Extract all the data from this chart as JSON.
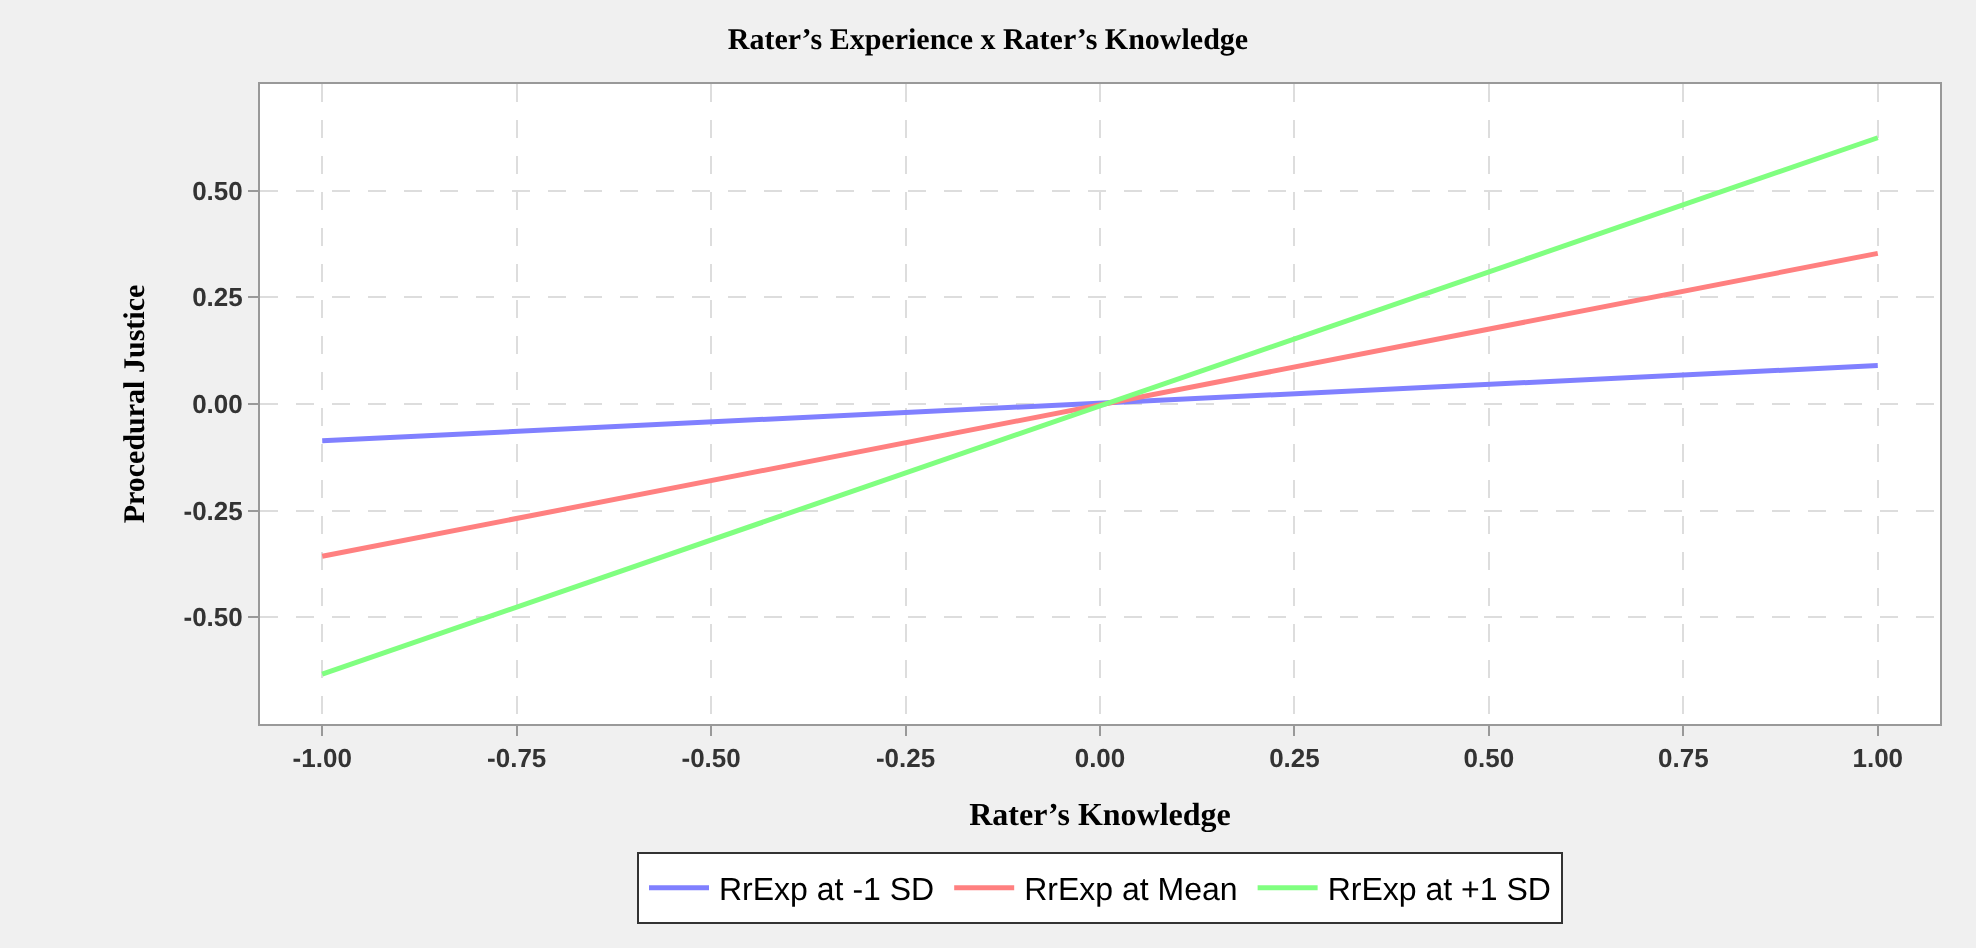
{
  "chart_data": {
    "type": "line",
    "title": "Rater’s Experience x Rater’s Knowledge",
    "xlabel": "Rater’s Knowledge",
    "ylabel": "Procedural Justice",
    "x": [
      -1.0,
      1.0
    ],
    "series": [
      {
        "name": "RrExp at -1 SD",
        "color": "#8080ff",
        "values": [
          -0.086,
          0.09
        ]
      },
      {
        "name": "RrExp at Mean",
        "color": "#ff8080",
        "values": [
          -0.357,
          0.353
        ]
      },
      {
        "name": "RrExp at +1 SD",
        "color": "#80ff80",
        "values": [
          -0.633,
          0.624
        ]
      }
    ],
    "xlim": [
      -1.08,
      1.08
    ],
    "xticks": [
      {
        "value": -1,
        "label": "-1.00"
      },
      {
        "value": -0.75,
        "label": "-0.75"
      },
      {
        "value": -0.5,
        "label": "-0.50"
      },
      {
        "value": -0.25,
        "label": "-0.25"
      },
      {
        "value": 0,
        "label": "0.00"
      },
      {
        "value": 0.25,
        "label": "0.25"
      },
      {
        "value": 0.5,
        "label": "0.50"
      },
      {
        "value": 0.75,
        "label": "0.75"
      },
      {
        "value": 1,
        "label": "1.00"
      }
    ],
    "ylim": [
      -0.75,
      0.75
    ],
    "yticks": [
      {
        "value": -0.5,
        "label": "-0.50"
      },
      {
        "value": -0.25,
        "label": "-0.25"
      },
      {
        "value": 0,
        "label": "0.00"
      },
      {
        "value": 0.25,
        "label": "0.25"
      },
      {
        "value": 0.5,
        "label": "0.50"
      }
    ],
    "grid": true,
    "legend": "bottom",
    "marker": "none",
    "line_style": "solid"
  }
}
